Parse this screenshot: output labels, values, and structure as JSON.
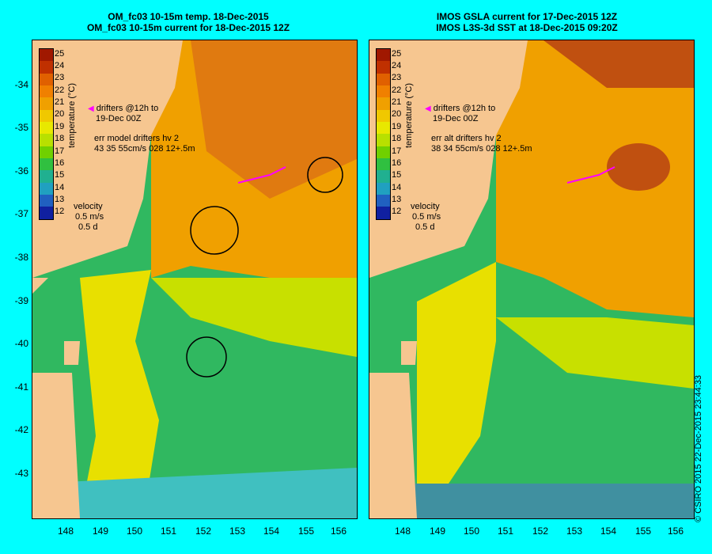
{
  "left_panel": {
    "title_line1": "OM_fc03 10-15m temp. 18-Dec-2015",
    "title_line2": "OM_fc03 10-15m current for 18-Dec-2015 12Z",
    "drifters_line1": "drifters @12h to",
    "drifters_line2": "19-Dec 00Z",
    "err_line1": "err model drifters hv 2",
    "err_line2": "43 35 55cm/s 028 12+.5m",
    "velocity_label": "velocity",
    "velocity_value": "0.5 m/s",
    "velocity_time": "0.5 d"
  },
  "right_panel": {
    "title_line1": "IMOS GSLA current for 17-Dec-2015 12Z",
    "title_line2": "IMOS L3S-3d SST at 18-Dec-2015 09:20Z",
    "drifters_line1": "drifters @12h to",
    "drifters_line2": "19-Dec 00Z",
    "err_line1": "err alt drifters hv 2",
    "err_line2": "38 34 55cm/s 028 12+.5m",
    "velocity_label": "velocity",
    "velocity_value": "0.5 m/s",
    "velocity_time": "0.5 d"
  },
  "colorbar": {
    "title": "temperature (°C)",
    "labels": [
      "25",
      "24",
      "23",
      "22",
      "21",
      "20",
      "19",
      "18",
      "17",
      "16",
      "15",
      "14",
      "13",
      "12"
    ],
    "colors": [
      "#a01800",
      "#c03000",
      "#e06000",
      "#f08000",
      "#f0a000",
      "#f0c800",
      "#e8e800",
      "#b8e000",
      "#70d000",
      "#30c040",
      "#20b090",
      "#20a0c0",
      "#2060c0",
      "#1020a0"
    ]
  },
  "y_ticks": [
    "-34",
    "-35",
    "-36",
    "-37",
    "-38",
    "-39",
    "-40",
    "-41",
    "-42",
    "-43"
  ],
  "x_ticks": [
    "148",
    "149",
    "150",
    "151",
    "152",
    "153",
    "154",
    "155",
    "156"
  ],
  "credit": "© CSIRO 2015  22-Dec-2015 23:44:33",
  "colors": {
    "background": "#00ffff",
    "land": "#f6c690",
    "drifter": "#ff00ff"
  }
}
